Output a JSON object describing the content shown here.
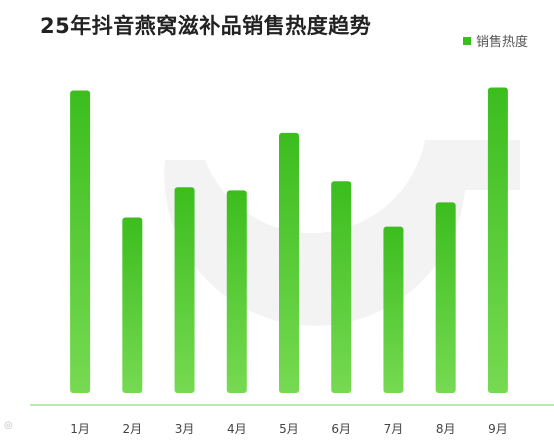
{
  "chart_data": {
    "type": "bar",
    "title": "25年抖音燕窝滋补品销售热度趋势",
    "categories": [
      "1月",
      "2月",
      "3月",
      "4月",
      "5月",
      "6月",
      "7月",
      "8月",
      "9月"
    ],
    "series": [
      {
        "name": "销售热度",
        "values": [
          100,
          58,
          68,
          67,
          86,
          70,
          55,
          63,
          101
        ]
      }
    ],
    "ylim": [
      0,
      120
    ],
    "legend_position": "top-right",
    "grid": false,
    "colors": {
      "bar_top": "#3cbd1e",
      "bar_bottom": "#76da52",
      "baseline": "#bfe8ae",
      "watermark": "#eeeeee"
    }
  }
}
